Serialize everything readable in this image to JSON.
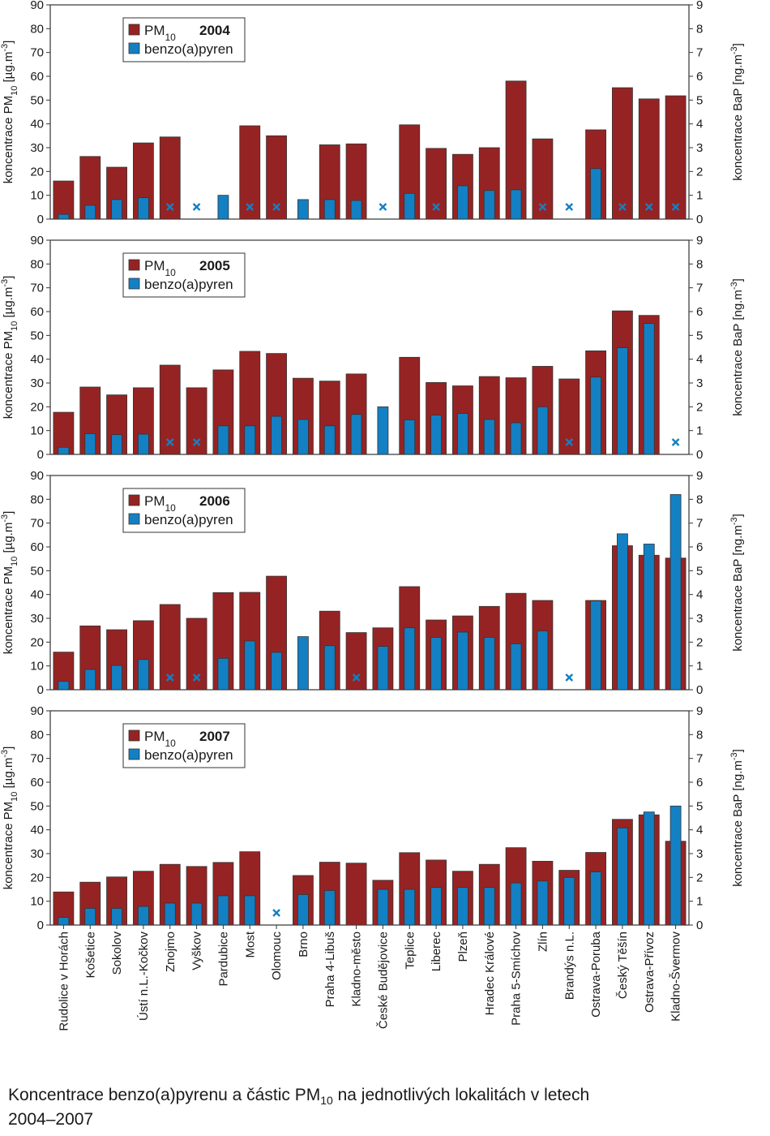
{
  "categories": [
    "Rudolice v Horách",
    "Košetice",
    "Sokolov",
    "Ústí n.L.-Kočkov",
    "Znojmo",
    "Vyškov",
    "Pardubice",
    "Most",
    "Olomouc",
    "Brno",
    "Praha 4-Libuš",
    "Kladno-město",
    "České Budějovice",
    "Teplice",
    "Liberec",
    "Plzeň",
    "Hradec Králové",
    "Praha 5-Smíchov",
    "Zlín",
    "Brandýs n.L.",
    "Ostrava-Poruba",
    "Český Těšín",
    "Ostrava-Přívoz",
    "Kladno-Švermov"
  ],
  "legend": {
    "pm10": "PM",
    "pm10_sub": "10",
    "bap": "benzo(a)pyren"
  },
  "y_left_label": "koncentrace PM10 [µg.m-3]",
  "y_right_label": "koncentrace BaP [ng.m-3]",
  "colors": {
    "pm10": "#962323",
    "bap": "#1380c4",
    "marker": "#1380c4"
  },
  "caption": {
    "pre": "Koncentrace benzo(a)pyrenu a částic PM",
    "sub": "10",
    "post": " na jednotlivých lokalitách v letech",
    "line2": "2004–2007"
  },
  "chart_data": [
    {
      "type": "bar",
      "title": "2004",
      "ylim_left": [
        0,
        90
      ],
      "ylim_right": [
        0,
        9
      ],
      "yticks_left": [
        0,
        10,
        20,
        30,
        40,
        50,
        60,
        70,
        80,
        90
      ],
      "yticks_right": [
        0,
        1,
        2,
        3,
        4,
        5,
        6,
        7,
        8,
        9
      ],
      "legend_placement": "top-left",
      "series": [
        {
          "name": "PM10",
          "axis": "left",
          "values": [
            16,
            26.3,
            21.8,
            32,
            34.5,
            null,
            null,
            39.2,
            35,
            null,
            31.2,
            31.6,
            null,
            39.6,
            29.7,
            27.2,
            30,
            58,
            33.7,
            null,
            37.5,
            55.2,
            50.5,
            51.8
          ]
        },
        {
          "name": "benzo(a)pyren",
          "axis": "right",
          "values": [
            0.2,
            0.58,
            0.82,
            0.9,
            null,
            null,
            1.0,
            null,
            null,
            0.82,
            0.82,
            0.78,
            null,
            1.08,
            null,
            1.4,
            1.2,
            1.23,
            null,
            null,
            2.12,
            null,
            null,
            null
          ]
        }
      ],
      "no_data_markers": [
        4,
        5,
        7,
        8,
        12,
        14,
        18,
        19,
        21,
        22,
        23
      ]
    },
    {
      "type": "bar",
      "title": "2005",
      "ylim_left": [
        0,
        90
      ],
      "ylim_right": [
        0,
        9
      ],
      "yticks_left": [
        0,
        10,
        20,
        30,
        40,
        50,
        60,
        70,
        80,
        90
      ],
      "yticks_right": [
        0,
        1,
        2,
        3,
        4,
        5,
        6,
        7,
        8,
        9
      ],
      "legend_placement": "top-left",
      "series": [
        {
          "name": "PM10",
          "axis": "left",
          "values": [
            17.7,
            28.3,
            25,
            28,
            37.5,
            28,
            35.5,
            43.3,
            42.4,
            32,
            30.8,
            33.8,
            null,
            40.8,
            30.2,
            28.8,
            32.7,
            32.2,
            37,
            31.7,
            43.5,
            60.3,
            58.4,
            null
          ]
        },
        {
          "name": "benzo(a)pyren",
          "axis": "right",
          "values": [
            0.3,
            0.87,
            0.83,
            0.85,
            null,
            null,
            1.2,
            1.2,
            1.6,
            1.47,
            1.2,
            1.68,
            2.0,
            1.45,
            1.65,
            1.72,
            1.47,
            1.33,
            2.0,
            null,
            3.25,
            4.48,
            5.5,
            null
          ]
        }
      ],
      "no_data_markers": [
        4,
        5,
        19,
        23
      ]
    },
    {
      "type": "bar",
      "title": "2006",
      "ylim_left": [
        0,
        90
      ],
      "ylim_right": [
        0,
        9
      ],
      "yticks_left": [
        0,
        10,
        20,
        30,
        40,
        50,
        60,
        70,
        80,
        90
      ],
      "yticks_right": [
        0,
        1,
        2,
        3,
        4,
        5,
        6,
        7,
        8,
        9
      ],
      "legend_placement": "top-left",
      "series": [
        {
          "name": "PM10",
          "axis": "left",
          "values": [
            15.8,
            26.8,
            25.2,
            29,
            35.8,
            30,
            40.8,
            40.9,
            47.7,
            null,
            33,
            24,
            26,
            43.3,
            29.3,
            31,
            35,
            40.5,
            37.5,
            null,
            37.5,
            60.5,
            56.5,
            55.3
          ]
        },
        {
          "name": "benzo(a)pyren",
          "axis": "right",
          "values": [
            0.35,
            0.85,
            1.02,
            1.27,
            null,
            null,
            1.32,
            2.05,
            1.57,
            2.23,
            1.85,
            null,
            1.82,
            2.6,
            2.2,
            2.42,
            2.2,
            1.93,
            2.47,
            null,
            3.73,
            6.55,
            6.12,
            8.2
          ]
        }
      ],
      "no_data_markers": [
        4,
        5,
        11,
        19
      ]
    },
    {
      "type": "bar",
      "title": "2007",
      "ylim_left": [
        0,
        90
      ],
      "ylim_right": [
        0,
        9
      ],
      "yticks_left": [
        0,
        10,
        20,
        30,
        40,
        50,
        60,
        70,
        80,
        90
      ],
      "yticks_right": [
        0,
        1,
        2,
        3,
        4,
        5,
        6,
        7,
        8,
        9
      ],
      "legend_placement": "top-left",
      "series": [
        {
          "name": "PM10",
          "axis": "left",
          "values": [
            13.9,
            18,
            20.2,
            22.6,
            25.5,
            24.6,
            26.3,
            30.8,
            null,
            20.8,
            26.4,
            26,
            18.8,
            30.4,
            27.3,
            22.6,
            25.5,
            32.5,
            26.8,
            23,
            30.5,
            44.4,
            46.3,
            35.2
          ]
        },
        {
          "name": "benzo(a)pyren",
          "axis": "right",
          "values": [
            0.32,
            0.7,
            0.7,
            0.78,
            0.92,
            0.92,
            1.23,
            1.23,
            null,
            1.28,
            1.45,
            null,
            1.5,
            1.5,
            1.58,
            1.58,
            1.58,
            1.77,
            1.85,
            2.0,
            2.23,
            4.08,
            4.75,
            5.0
          ]
        }
      ],
      "no_data_markers": [
        8
      ]
    }
  ]
}
